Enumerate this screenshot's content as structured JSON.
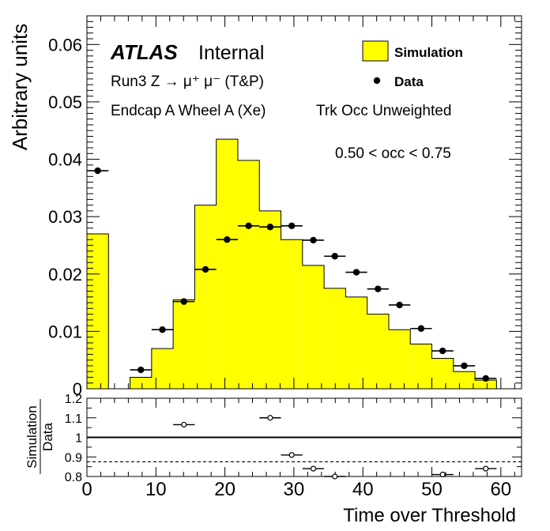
{
  "chart_data": {
    "type": "bar",
    "main": {
      "ylabel": "Arbitrary units",
      "ylim": [
        0,
        0.065
      ],
      "yticks": [
        "0",
        "0.01",
        "0.02",
        "0.03",
        "0.04",
        "0.05",
        "0.06"
      ],
      "xlim": [
        0,
        63
      ],
      "simulation": {
        "name": "Simulation",
        "bin_edges": [
          0,
          3.125,
          6.25,
          9.375,
          12.5,
          15.625,
          18.75,
          21.875,
          25,
          28.125,
          31.25,
          34.375,
          37.5,
          40.625,
          43.75,
          46.875,
          50,
          53.125,
          56.25,
          59.375
        ],
        "values": [
          0.027,
          0,
          0.002,
          0.007,
          0.0155,
          0.032,
          0.0435,
          0.0398,
          0.031,
          0.026,
          0.0215,
          0.0175,
          0.016,
          0.013,
          0.0103,
          0.0078,
          0.0053,
          0.003,
          0.0015
        ]
      },
      "data": {
        "name": "Data",
        "x": [
          1.5625,
          7.8125,
          10.9375,
          14.0625,
          17.1875,
          20.3125,
          23.4375,
          26.5625,
          29.6875,
          32.8125,
          35.9375,
          39.0625,
          42.1875,
          45.3125,
          48.4375,
          51.5625,
          54.6875,
          57.8125
        ],
        "y": [
          0.038,
          0.0033,
          0.0103,
          0.0152,
          0.0208,
          0.026,
          0.0284,
          0.0282,
          0.0284,
          0.0259,
          0.0231,
          0.0203,
          0.0174,
          0.0146,
          0.0105,
          0.0066,
          0.004,
          0.0018
        ]
      }
    },
    "ratio": {
      "ylabel_top": "Simulation",
      "ylabel_bottom": "Data",
      "ylim": [
        0.8,
        1.2
      ],
      "yticks": [
        "0.8",
        "0.9",
        "1",
        "1.1",
        "1.2"
      ],
      "reference_solid": 1.0,
      "reference_dashed": 0.875,
      "x": [
        14.0625,
        26.5625,
        29.6875,
        32.8125,
        35.9375,
        51.5625,
        57.8125
      ],
      "y": [
        1.065,
        1.1,
        0.91,
        0.84,
        0.8,
        0.81,
        0.84
      ]
    },
    "xlabel": "Time over Threshold",
    "xticks": [
      "0",
      "10",
      "20",
      "30",
      "40",
      "50",
      "60"
    ]
  },
  "labels": {
    "atlas": "ATLAS",
    "internal": "Internal",
    "run": "Run3 Z → μ⁺ μ⁻ (T&P)",
    "region": "Endcap A Wheel A (Xe)",
    "occupancy_mode": "Trk Occ Unweighted",
    "occ_range": "0.50 < occ < 0.75"
  },
  "legend": {
    "simulation": "Simulation",
    "data": "Data",
    "simulation_color": "#ffff00"
  }
}
